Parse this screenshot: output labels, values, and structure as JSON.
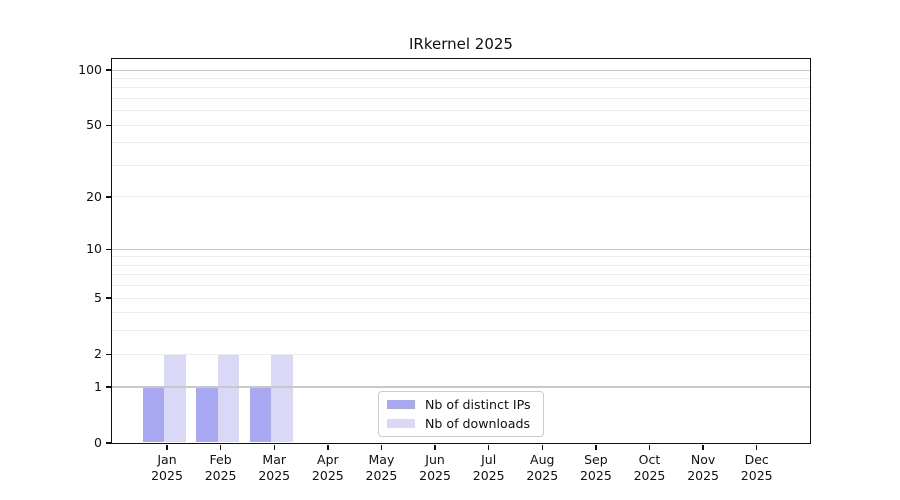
{
  "chart_data": {
    "type": "bar",
    "title": "IRkernel 2025",
    "categories": [
      "Jan 2025",
      "Feb 2025",
      "Mar 2025",
      "Apr 2025",
      "May 2025",
      "Jun 2025",
      "Jul 2025",
      "Aug 2025",
      "Sep 2025",
      "Oct 2025",
      "Nov 2025",
      "Dec 2025"
    ],
    "series": [
      {
        "name": "Nb of distinct IPs",
        "color": "#a9a9f3",
        "values": [
          1,
          1,
          1,
          0,
          0,
          0,
          0,
          0,
          0,
          0,
          0,
          0
        ]
      },
      {
        "name": "Nb of downloads",
        "color": "#d9d9f7",
        "values": [
          2,
          2,
          2,
          0,
          0,
          0,
          0,
          0,
          0,
          0,
          0,
          0
        ]
      }
    ],
    "xlabel": "",
    "ylabel": "",
    "yscale": "log1p",
    "ylim": [
      0,
      115
    ],
    "yticks": [
      0,
      1,
      2,
      5,
      10,
      20,
      50,
      100
    ],
    "minor_yticks": [
      3,
      4,
      6,
      7,
      8,
      9,
      30,
      40,
      60,
      70,
      80,
      90
    ],
    "grid": "horizontal",
    "legend_position": "lower center",
    "colors": {
      "grid_decade": "#c8c8c8",
      "grid_other": "#ececec",
      "spine": "#111111",
      "text": "#111111",
      "background": "#ffffff"
    }
  }
}
